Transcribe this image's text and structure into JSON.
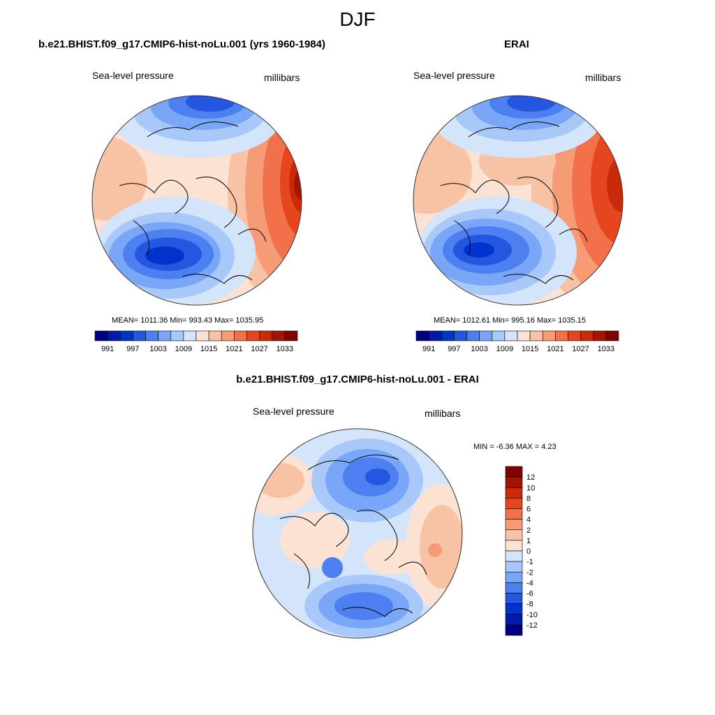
{
  "figure": {
    "title": "DJF"
  },
  "panels": {
    "model": {
      "title": "b.e21.BHIST.f09_g17.CMIP6-hist-noLu.001 (yrs 1960-1984)",
      "variable": "Sea-level pressure",
      "units": "millibars",
      "stats": "MEAN= 1011.36  Min= 993.43  Max= 1035.95"
    },
    "obs": {
      "title": "ERAI",
      "variable": "Sea-level pressure",
      "units": "millibars",
      "stats": "MEAN= 1012.61  Min= 995.16  Max= 1035.15"
    },
    "diff": {
      "title": "b.e21.BHIST.f09_g17.CMIP6-hist-noLu.001 - ERAI",
      "variable": "Sea-level pressure",
      "units": "millibars",
      "stats": "MIN =  -6.36 MAX =   4.23"
    }
  },
  "colorbars": {
    "abs": {
      "colors": [
        "#00007f",
        "#001aad",
        "#0033cc",
        "#2456e0",
        "#4d7ff0",
        "#7aa6f8",
        "#a8c8fa",
        "#d3e4fb",
        "#fbe2d2",
        "#f8c2a4",
        "#f59c77",
        "#f2714a",
        "#e6461f",
        "#c92a0a",
        "#a31503",
        "#7f0000"
      ],
      "labels": [
        "991",
        "997",
        "1003",
        "1009",
        "1015",
        "1021",
        "1027",
        "1033"
      ]
    },
    "diff": {
      "colors": [
        "#00007f",
        "#001aad",
        "#0033cc",
        "#2456e0",
        "#4d7ff0",
        "#7aa6f8",
        "#a8c8fa",
        "#d3e4fb",
        "#fbe2d2",
        "#f8c2a4",
        "#f59c77",
        "#f2714a",
        "#e6461f",
        "#c92a0a",
        "#a31503",
        "#7f0000"
      ],
      "labels": [
        "12",
        "10",
        "8",
        "6",
        "4",
        "2",
        "1",
        "0",
        "-1",
        "-2",
        "-4",
        "-6",
        "-8",
        "-10",
        "-12"
      ]
    }
  }
}
